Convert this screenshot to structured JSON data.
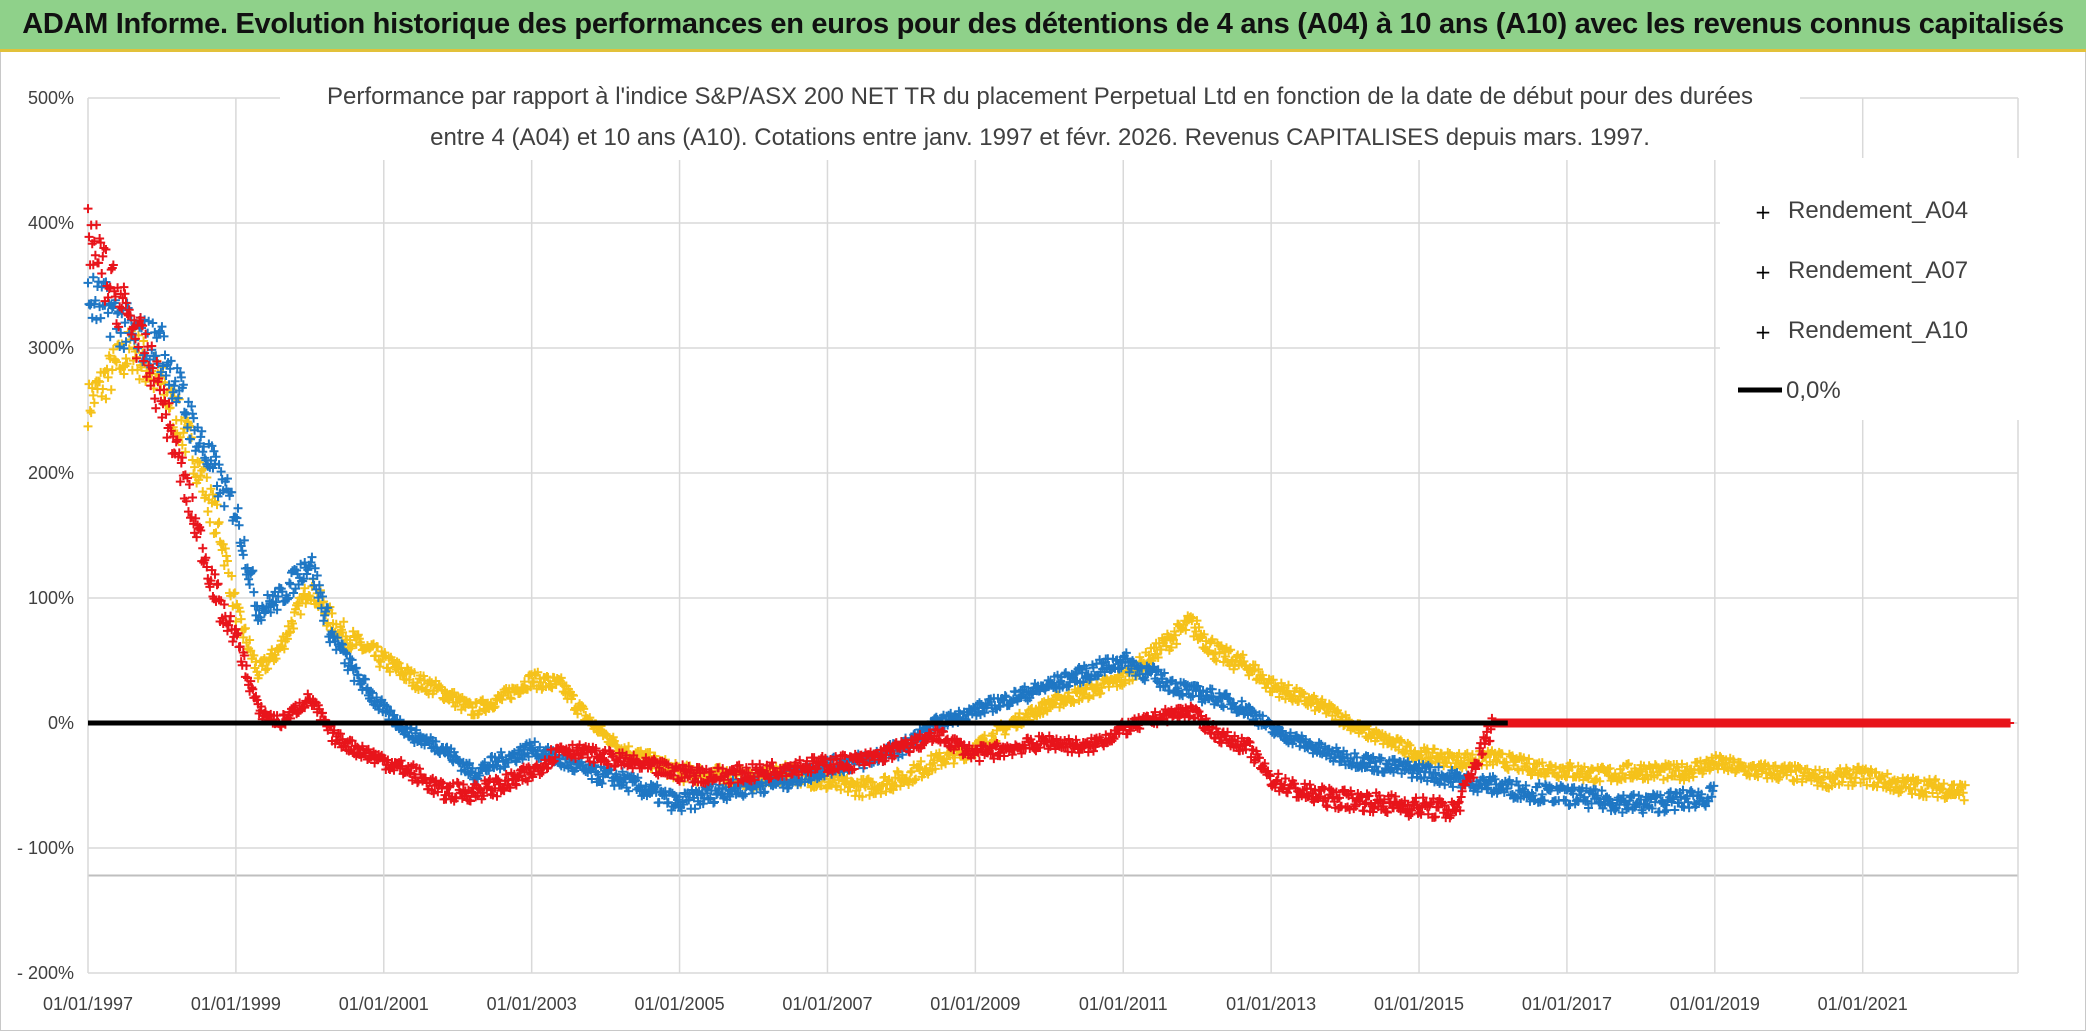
{
  "header": {
    "banner_title": "ADAM Informe. Evolution historique des performances en euros pour des détentions de 4 ans (A04) à 10 ans (A10) avec les revenus connus capitalisés"
  },
  "chart_data": {
    "type": "scatter",
    "title_lines": [
      "Performance par rapport à l'indice S&P/ASX 200 NET TR  du placement Perpetual Ltd en fonction de la date de début pour des durées",
      "entre 4 (A04) et 10 ans (A10). Cotations entre janv. 1997 et févr. 2026. Revenus CAPITALISES depuis mars. 1997."
    ],
    "xlabel": "",
    "ylabel": "",
    "xlim": [
      1997.0,
      2023.1
    ],
    "ylim": [
      -200,
      500
    ],
    "y_ticks": [
      500,
      400,
      300,
      200,
      100,
      0,
      -100,
      -200
    ],
    "y_tick_labels": [
      "500%",
      "400%",
      "300%",
      "200%",
      "100%",
      "0%",
      "- 100%",
      "- 200%"
    ],
    "x_ticks": [
      1997,
      1999,
      2001,
      2003,
      2005,
      2007,
      2009,
      2011,
      2013,
      2015,
      2017,
      2019,
      2021
    ],
    "x_tick_labels": [
      "01/01/1997",
      "01/01/1999",
      "01/01/2001",
      "01/01/2003",
      "01/01/2005",
      "01/01/2007",
      "01/01/2009",
      "01/01/2011",
      "01/01/2013",
      "01/01/2015",
      "01/01/2017",
      "01/01/2019",
      "01/01/2021"
    ],
    "extra_hline": -122,
    "grid": true,
    "legend_position": "top-right",
    "series": [
      {
        "name": "Rendement_A04",
        "color": "#f5c21b",
        "marker": "+",
        "x": [
          1997.0,
          1997.3,
          1997.6,
          1998.0,
          1998.4,
          1998.8,
          1999.0,
          1999.3,
          1999.6,
          2000.0,
          2000.3,
          2000.6,
          2001.0,
          2001.4,
          2001.8,
          2002.2,
          2002.6,
          2003.0,
          2003.4,
          2003.8,
          2004.2,
          2004.6,
          2005.0,
          2005.5,
          2006.0,
          2006.5,
          2007.0,
          2007.5,
          2008.0,
          2008.5,
          2009.0,
          2009.5,
          2010.0,
          2010.5,
          2011.0,
          2011.5,
          2011.9,
          2012.3,
          2012.7,
          2013.0,
          2013.4,
          2013.8,
          2014.2,
          2014.6,
          2015.0,
          2015.5,
          2016.0,
          2016.5,
          2017.0,
          2017.5,
          2018.0,
          2018.5,
          2019.0,
          2019.5,
          2020.0,
          2020.5,
          2021.0,
          2021.5,
          2022.0,
          2022.4
        ],
        "y": [
          255,
          280,
          300,
          270,
          220,
          150,
          90,
          40,
          60,
          110,
          80,
          65,
          50,
          35,
          25,
          10,
          20,
          35,
          30,
          0,
          -20,
          -30,
          -40,
          -42,
          -45,
          -40,
          -48,
          -52,
          -45,
          -30,
          -20,
          0,
          15,
          25,
          35,
          60,
          80,
          55,
          45,
          30,
          20,
          10,
          -5,
          -15,
          -25,
          -30,
          -28,
          -35,
          -38,
          -42,
          -38,
          -40,
          -32,
          -38,
          -40,
          -45,
          -42,
          -50,
          -52,
          -55
        ]
      },
      {
        "name": "Rendement_A07",
        "color": "#1f77c4",
        "marker": "+",
        "x": [
          1997.0,
          1997.3,
          1997.6,
          1998.0,
          1998.4,
          1998.8,
          1999.0,
          1999.3,
          1999.6,
          2000.0,
          2000.3,
          2000.6,
          2001.0,
          2001.4,
          2001.8,
          2002.2,
          2002.6,
          2003.0,
          2003.4,
          2003.8,
          2004.2,
          2004.6,
          2005.0,
          2005.5,
          2006.0,
          2006.5,
          2007.0,
          2007.5,
          2008.0,
          2008.5,
          2009.0,
          2009.5,
          2010.0,
          2010.5,
          2011.0,
          2011.5,
          2011.9,
          2012.3,
          2012.7,
          2013.0,
          2013.4,
          2013.8,
          2014.2,
          2014.6,
          2015.0,
          2015.5,
          2016.0,
          2016.5,
          2017.0,
          2017.5,
          2018.0,
          2018.5,
          2019.0
        ],
        "y": [
          340,
          330,
          310,
          300,
          240,
          190,
          170,
          90,
          100,
          130,
          70,
          40,
          10,
          -10,
          -20,
          -40,
          -30,
          -20,
          -30,
          -40,
          -45,
          -55,
          -65,
          -55,
          -50,
          -45,
          -35,
          -30,
          -20,
          0,
          10,
          20,
          30,
          40,
          50,
          35,
          25,
          20,
          10,
          -5,
          -15,
          -25,
          -30,
          -35,
          -38,
          -45,
          -50,
          -55,
          -58,
          -62,
          -65,
          -62,
          -58
        ]
      },
      {
        "name": "Rendement_A10",
        "color": "#e8141b",
        "marker": "+",
        "x": [
          1997.0,
          1997.3,
          1997.6,
          1998.0,
          1998.4,
          1998.8,
          1999.0,
          1999.3,
          1999.6,
          2000.0,
          2000.3,
          2000.6,
          2001.0,
          2001.4,
          2001.8,
          2002.2,
          2002.6,
          2003.0,
          2003.4,
          2003.8,
          2004.2,
          2004.6,
          2005.0,
          2005.5,
          2006.0,
          2006.5,
          2007.0,
          2007.5,
          2008.0,
          2008.5,
          2009.0,
          2009.5,
          2010.0,
          2010.5,
          2011.0,
          2011.5,
          2011.9,
          2012.3,
          2012.7,
          2013.0,
          2013.4,
          2013.8,
          2014.2,
          2014.6,
          2015.0,
          2015.5,
          2016.0,
          2016.5,
          2017.0,
          2017.5,
          2018.0,
          2018.5,
          2019.0,
          2019.5,
          2020.0,
          2020.5,
          2021.0,
          2021.5,
          2022.0,
          2022.5,
          2023.0
        ],
        "y": [
          390,
          350,
          320,
          260,
          170,
          90,
          70,
          10,
          0,
          20,
          -10,
          -20,
          -30,
          -40,
          -55,
          -55,
          -50,
          -40,
          -20,
          -25,
          -30,
          -35,
          -40,
          -42,
          -40,
          -35,
          -33,
          -30,
          -20,
          -10,
          -25,
          -20,
          -15,
          -20,
          -5,
          5,
          10,
          -10,
          -20,
          -45,
          -55,
          -60,
          -62,
          -65,
          -67,
          -70,
          0,
          0,
          0,
          0,
          0,
          0,
          0,
          0,
          0,
          0,
          0,
          0,
          0,
          0,
          0
        ]
      },
      {
        "name": "0,0%",
        "color": "#000000",
        "type": "line",
        "x": [
          1997.0,
          2016.2
        ],
        "y": [
          0,
          0
        ]
      }
    ]
  }
}
